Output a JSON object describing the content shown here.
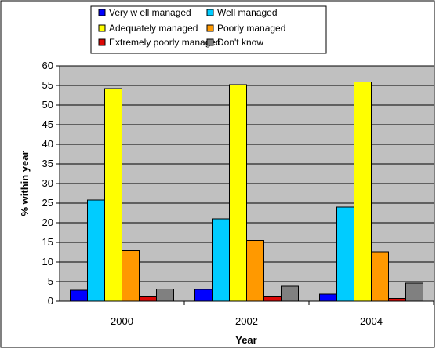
{
  "chart_data": {
    "type": "bar",
    "categories": [
      "2000",
      "2002",
      "2004"
    ],
    "series": [
      {
        "name": "Very w ell managed",
        "color": "#0000ff",
        "values": [
          2.8,
          3.0,
          1.8
        ]
      },
      {
        "name": "Well managed",
        "color": "#00ccff",
        "values": [
          25.8,
          21.0,
          24.0
        ]
      },
      {
        "name": "Adequately managed",
        "color": "#ffff00",
        "values": [
          54.2,
          55.2,
          55.9
        ]
      },
      {
        "name": "Poorly managed",
        "color": "#ff9900",
        "values": [
          12.9,
          15.5,
          12.6
        ]
      },
      {
        "name": "Extremely poorly managed",
        "color": "#dd0806",
        "values": [
          1.1,
          1.1,
          0.7
        ]
      },
      {
        "name": "Don't know",
        "color": "#808080",
        "values": [
          3.1,
          3.8,
          4.6
        ]
      }
    ],
    "title": "",
    "xlabel": "Year",
    "ylabel": "% within year",
    "ylim": [
      0,
      60
    ],
    "yticks": [
      0,
      5,
      10,
      15,
      20,
      25,
      30,
      35,
      40,
      45,
      50,
      55,
      60
    ],
    "grid": true,
    "legend_position": "top",
    "plot_background": "#c0c0c0"
  }
}
